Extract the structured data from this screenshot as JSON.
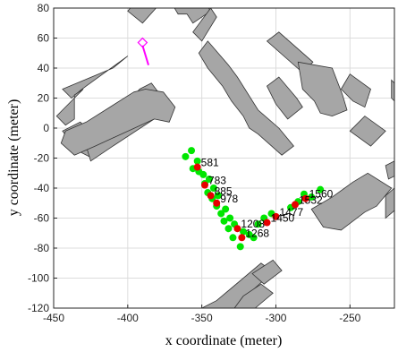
{
  "chart_data": {
    "type": "scatter",
    "title": "",
    "xlabel": "x coordinate (meter)",
    "ylabel": "y coordinate (meter)",
    "xlim": [
      -450,
      -220
    ],
    "ylim": [
      -120,
      80
    ],
    "xticks": [
      -450,
      -400,
      -350,
      -300,
      -250
    ],
    "yticks": [
      80,
      60,
      40,
      20,
      0,
      -20,
      -40,
      -60,
      -80,
      -100,
      -120
    ],
    "grid": true,
    "colors": {
      "building_fill": "#a6a6a6",
      "building_edge": "#333333",
      "green": "#00e600",
      "red": "#e60000",
      "magenta": "#ff00ff",
      "grid": "#dcdcdc"
    },
    "green_points": [
      [
        -361,
        -19
      ],
      [
        -357,
        -15
      ],
      [
        -356,
        -27
      ],
      [
        -353,
        -22
      ],
      [
        -352,
        -29
      ],
      [
        -349,
        -31
      ],
      [
        -348,
        -37
      ],
      [
        -345,
        -34
      ],
      [
        -346,
        -43
      ],
      [
        -342,
        -40
      ],
      [
        -343,
        -47
      ],
      [
        -339,
        -45
      ],
      [
        -340,
        -52
      ],
      [
        -337,
        -57
      ],
      [
        -334,
        -54
      ],
      [
        -335,
        -62
      ],
      [
        -331,
        -60
      ],
      [
        -332,
        -67
      ],
      [
        -328,
        -64
      ],
      [
        -329,
        -73
      ],
      [
        -324,
        -79
      ],
      [
        -322,
        -69
      ],
      [
        -318,
        -71
      ],
      [
        -315,
        -73
      ],
      [
        -312,
        -64
      ],
      [
        -308,
        -60
      ],
      [
        -303,
        -57
      ],
      [
        -290,
        -53
      ],
      [
        -285,
        -49
      ],
      [
        -281,
        -44
      ],
      [
        -276,
        -46
      ],
      [
        -270,
        -41
      ]
    ],
    "red_points": [
      {
        "x": -353,
        "y": -26,
        "label": "581"
      },
      {
        "x": -348,
        "y": -38,
        "label": "783"
      },
      {
        "x": -344,
        "y": -45,
        "label": "885"
      },
      {
        "x": -340,
        "y": -50,
        "label": "978"
      },
      {
        "x": -326,
        "y": -67,
        "label": "1208"
      },
      {
        "x": -323,
        "y": -73,
        "label": "1268"
      },
      {
        "x": -306,
        "y": -63,
        "label": "1450"
      },
      {
        "x": -300,
        "y": -59,
        "label": "1477"
      },
      {
        "x": -287,
        "y": -51,
        "label": "1532"
      },
      {
        "x": -280,
        "y": -47,
        "label": "1560"
      }
    ],
    "marker": {
      "x": -390,
      "y": 57
    },
    "marker_arrow": {
      "x1": -390,
      "y1": 55,
      "x2": -386,
      "y2": 42
    },
    "buildings": [
      [
        [
          -400,
          78
        ],
        [
          -390,
          70
        ],
        [
          -370,
          92
        ],
        [
          -380,
          100
        ]
      ],
      [
        [
          -410,
          40
        ],
        [
          -400,
          48
        ],
        [
          -428,
          28
        ],
        [
          -432,
          25
        ],
        [
          -438,
          20
        ],
        [
          -444,
          26
        ]
      ],
      [
        [
          -436,
          22
        ],
        [
          -430,
          26
        ],
        [
          -444,
          12
        ],
        [
          -448,
          8
        ],
        [
          -442,
          2
        ],
        [
          -436,
          6
        ]
      ],
      [
        [
          -444,
          -2
        ],
        [
          -434,
          -15
        ],
        [
          -424,
          -20
        ],
        [
          -416,
          -12
        ],
        [
          -432,
          4
        ]
      ],
      [
        [
          -425,
          -22
        ],
        [
          -410,
          -12
        ],
        [
          -376,
          10
        ],
        [
          -372,
          4
        ],
        [
          -378,
          22
        ],
        [
          -384,
          30
        ],
        [
          -392,
          26
        ],
        [
          -420,
          -6
        ],
        [
          -428,
          -12
        ]
      ],
      [
        [
          -382,
          95
        ],
        [
          -356,
          95
        ],
        [
          -344,
          78
        ],
        [
          -356,
          70
        ],
        [
          -360,
          76
        ],
        [
          -366,
          76
        ],
        [
          -372,
          86
        ]
      ],
      [
        [
          -356,
          64
        ],
        [
          -350,
          58
        ],
        [
          -340,
          74
        ],
        [
          -344,
          80
        ]
      ],
      [
        [
          -352,
          50
        ],
        [
          -346,
          58
        ],
        [
          -332,
          42
        ],
        [
          -326,
          34
        ],
        [
          -312,
          12
        ],
        [
          -298,
          0
        ],
        [
          -288,
          -12
        ],
        [
          -296,
          -18
        ],
        [
          -312,
          -4
        ],
        [
          -318,
          0
        ],
        [
          -322,
          8
        ],
        [
          -330,
          18
        ],
        [
          -336,
          28
        ],
        [
          -346,
          40
        ]
      ],
      [
        [
          -306,
          58
        ],
        [
          -298,
          64
        ],
        [
          -275,
          44
        ],
        [
          -282,
          37
        ]
      ],
      [
        [
          -285,
          44
        ],
        [
          -262,
          40
        ],
        [
          -255,
          22
        ],
        [
          -252,
          12
        ],
        [
          -262,
          8
        ],
        [
          -270,
          10
        ],
        [
          -274,
          18
        ],
        [
          -282,
          26
        ]
      ],
      [
        [
          -306,
          28
        ],
        [
          -298,
          34
        ],
        [
          -286,
          20
        ],
        [
          -282,
          14
        ],
        [
          -292,
          6
        ],
        [
          -300,
          16
        ]
      ],
      [
        [
          -256,
          26
        ],
        [
          -250,
          36
        ],
        [
          -236,
          26
        ],
        [
          -240,
          14
        ],
        [
          -248,
          18
        ]
      ],
      [
        [
          -250,
          -2
        ],
        [
          -240,
          8
        ],
        [
          -226,
          -2
        ],
        [
          -236,
          -12
        ]
      ],
      [
        [
          -276,
          -54
        ],
        [
          -262,
          -46
        ],
        [
          -248,
          -36
        ],
        [
          -238,
          -30
        ],
        [
          -222,
          -40
        ],
        [
          -232,
          -52
        ],
        [
          -240,
          -56
        ],
        [
          -256,
          -68
        ],
        [
          -268,
          -66
        ]
      ],
      [
        [
          -350,
          -120
        ],
        [
          -340,
          -115
        ],
        [
          -310,
          -90
        ],
        [
          -302,
          -96
        ],
        [
          -318,
          -110
        ],
        [
          -328,
          -120
        ]
      ],
      [
        [
          -316,
          -97
        ],
        [
          -308,
          -104
        ],
        [
          -296,
          -95
        ],
        [
          -302,
          -88
        ]
      ],
      [
        [
          -328,
          -120
        ],
        [
          -314,
          -120
        ],
        [
          -302,
          -110
        ],
        [
          -310,
          -104
        ],
        [
          -322,
          -112
        ]
      ],
      [
        [
          -226,
          -45
        ],
        [
          -220,
          -40
        ],
        [
          -220,
          -55
        ],
        [
          -226,
          -60
        ]
      ],
      [
        [
          -226,
          -25
        ],
        [
          -220,
          -22
        ],
        [
          -220,
          -32
        ],
        [
          -224,
          -34
        ]
      ],
      [
        [
          -222,
          20
        ],
        [
          -220,
          18
        ],
        [
          -220,
          30
        ],
        [
          -222,
          32
        ]
      ]
    ],
    "rounded_buildings": [
      {
        "points": [
          [
            -445,
            -10
          ],
          [
            -436,
            -18
          ],
          [
            -422,
            -12
          ],
          [
            -382,
            6
          ],
          [
            -372,
            4
          ],
          [
            -368,
            14
          ],
          [
            -376,
            24
          ],
          [
            -388,
            26
          ],
          [
            -396,
            24
          ],
          [
            -412,
            14
          ],
          [
            -428,
            4
          ],
          [
            -442,
            -2
          ]
        ]
      }
    ]
  }
}
